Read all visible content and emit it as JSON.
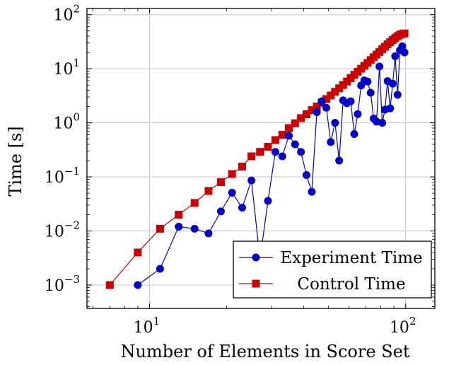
{
  "chart_data": {
    "type": "line",
    "xlabel": "Number of Elements in Score Set",
    "ylabel": "Time [s]",
    "xscale": "log",
    "yscale": "log",
    "xlim": [
      5.7,
      130
    ],
    "ylim": [
      0.00037,
      130
    ],
    "grid": true,
    "legend_position": "bottom-right",
    "x_ticks": [
      {
        "value": 10,
        "base": "10",
        "exp": "1"
      },
      {
        "value": 100,
        "base": "10",
        "exp": "2"
      }
    ],
    "y_ticks": [
      {
        "value": 0.001,
        "base": "10",
        "exp": "−3"
      },
      {
        "value": 0.01,
        "base": "10",
        "exp": "−2"
      },
      {
        "value": 0.1,
        "base": "10",
        "exp": "−1"
      },
      {
        "value": 1,
        "base": "10",
        "exp": "0"
      },
      {
        "value": 10,
        "base": "10",
        "exp": "1"
      },
      {
        "value": 100,
        "base": "10",
        "exp": "2"
      }
    ],
    "series": [
      {
        "name": "Experiment Time",
        "color": "#0000cc",
        "marker": "circle",
        "points": [
          [
            9,
            0.001
          ],
          [
            11,
            0.002
          ],
          [
            13,
            0.012
          ],
          [
            15,
            0.011
          ],
          [
            17,
            0.009
          ],
          [
            19,
            0.023
          ],
          [
            21,
            0.051
          ],
          [
            23,
            0.027
          ],
          [
            25,
            0.086
          ],
          [
            27,
            0.003
          ],
          [
            29,
            0.036
          ],
          [
            31,
            0.29
          ],
          [
            33,
            0.24
          ],
          [
            35,
            0.58
          ],
          [
            37,
            0.4
          ],
          [
            39,
            0.29
          ],
          [
            41,
            0.108
          ],
          [
            43,
            0.053
          ],
          [
            45,
            1.57
          ],
          [
            47,
            2.5
          ],
          [
            49,
            1.9
          ],
          [
            51,
            0.44
          ],
          [
            53,
            1.0
          ],
          [
            55,
            0.2
          ],
          [
            57,
            2.6
          ],
          [
            59,
            2.3
          ],
          [
            61,
            2.5
          ],
          [
            63,
            0.62
          ],
          [
            65,
            1.45
          ],
          [
            67,
            4.9
          ],
          [
            69,
            6.1
          ],
          [
            71,
            5.8
          ],
          [
            73,
            3.6
          ],
          [
            75,
            1.2
          ],
          [
            77,
            1.05
          ],
          [
            79,
            11.0
          ],
          [
            81,
            1.0
          ],
          [
            83,
            1.75
          ],
          [
            85,
            5.9
          ],
          [
            87,
            1.85
          ],
          [
            89,
            5.3
          ],
          [
            91,
            17.0
          ],
          [
            93,
            3.3
          ],
          [
            95,
            22.0
          ],
          [
            97,
            26.0
          ],
          [
            99,
            20.0
          ]
        ]
      },
      {
        "name": "Control Time",
        "color": "#cc0000",
        "marker": "square",
        "points": [
          [
            7,
            0.001
          ],
          [
            9,
            0.004
          ],
          [
            11,
            0.011
          ],
          [
            13,
            0.02
          ],
          [
            15,
            0.033
          ],
          [
            17,
            0.055
          ],
          [
            19,
            0.08
          ],
          [
            21,
            0.113
          ],
          [
            23,
            0.155
          ],
          [
            25,
            0.24
          ],
          [
            27,
            0.29
          ],
          [
            29,
            0.36
          ],
          [
            31,
            0.48
          ],
          [
            33,
            0.6
          ],
          [
            35,
            0.8
          ],
          [
            37,
            0.98
          ],
          [
            39,
            1.22
          ],
          [
            41,
            1.44
          ],
          [
            43,
            1.72
          ],
          [
            45,
            2.0
          ],
          [
            47,
            2.35
          ],
          [
            49,
            2.75
          ],
          [
            51,
            3.2
          ],
          [
            53,
            3.75
          ],
          [
            55,
            4.35
          ],
          [
            57,
            5.0
          ],
          [
            59,
            5.8
          ],
          [
            61,
            6.7
          ],
          [
            63,
            7.7
          ],
          [
            65,
            8.8
          ],
          [
            67,
            10.0
          ],
          [
            69,
            11.3
          ],
          [
            71,
            12.8
          ],
          [
            73,
            14.5
          ],
          [
            75,
            16.3
          ],
          [
            77,
            18.3
          ],
          [
            79,
            20.5
          ],
          [
            81,
            22.9
          ],
          [
            83,
            25.5
          ],
          [
            85,
            28.3
          ],
          [
            87,
            31.0
          ],
          [
            89,
            34.0
          ],
          [
            91,
            37.0
          ],
          [
            93,
            40.0
          ],
          [
            95,
            42.5
          ],
          [
            97,
            44.0
          ],
          [
            99,
            45.0
          ]
        ]
      }
    ]
  }
}
